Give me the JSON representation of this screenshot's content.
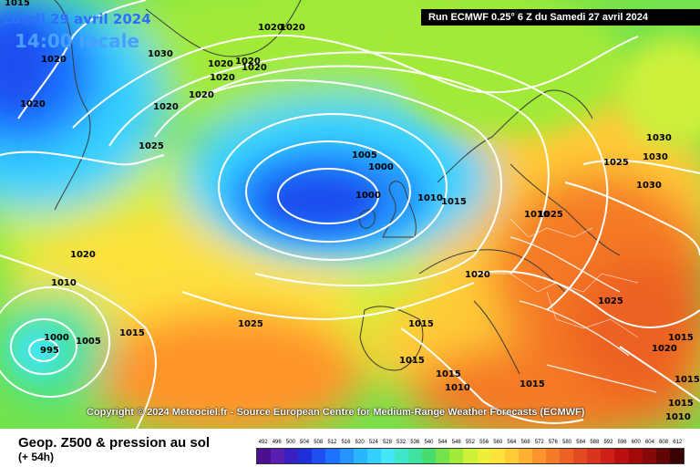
{
  "header": {
    "date": "Lundi 29 avril 2024",
    "local_time": "14:00 locale",
    "run": "Run ECMWF 0.25° 6 Z du Samedi 27 avril 2024"
  },
  "copyright": "Copyright © 2024 Meteociel.fr - Source European Centre for Medium-Range Weather Forecasts (ECMWF)",
  "footer": {
    "product": "Geop. Z500 & pression au sol",
    "lead": "(+ 54h)"
  },
  "legend": {
    "values": [
      "492",
      "496",
      "500",
      "504",
      "508",
      "512",
      "516",
      "520",
      "524",
      "528",
      "532",
      "536",
      "540",
      "544",
      "548",
      "552",
      "556",
      "560",
      "564",
      "568",
      "572",
      "576",
      "580",
      "584",
      "588",
      "592",
      "596",
      "600",
      "604",
      "608",
      "612"
    ],
    "colors": [
      "#4b0f8f",
      "#5a1fb0",
      "#3a20c0",
      "#2030d8",
      "#1e50f0",
      "#1f72ff",
      "#2494ff",
      "#2ab6ff",
      "#35d0ff",
      "#45e6f6",
      "#3fe6c9",
      "#3fe2a0",
      "#46dd6e",
      "#74e24b",
      "#a2ea38",
      "#cdf03a",
      "#eeef3a",
      "#fde13c",
      "#ffcb38",
      "#ffb032",
      "#ff942c",
      "#f57a28",
      "#ec6224",
      "#e24b20",
      "#d8351c",
      "#cc2018",
      "#bc1010",
      "#a20a0a",
      "#860808",
      "#640505",
      "#3a0303"
    ]
  },
  "map": {
    "high_color": "#fdd23a",
    "isobar_labels": [
      {
        "text": "1015"
      },
      {
        "text": "1020"
      },
      {
        "text": "1020"
      },
      {
        "text": "1030"
      },
      {
        "text": "1020"
      },
      {
        "text": "1020"
      },
      {
        "text": "1020"
      },
      {
        "text": "1020"
      },
      {
        "text": "1020"
      },
      {
        "text": "1020"
      },
      {
        "text": "1020"
      },
      {
        "text": "1020"
      },
      {
        "text": "1025"
      },
      {
        "text": "1005"
      },
      {
        "text": "1000"
      },
      {
        "text": "1000"
      },
      {
        "text": "1010"
      },
      {
        "text": "1015"
      },
      {
        "text": "1010"
      },
      {
        "text": "1025"
      },
      {
        "text": "1025"
      },
      {
        "text": "1030"
      },
      {
        "text": "1030"
      },
      {
        "text": "1030"
      },
      {
        "text": "1020"
      },
      {
        "text": "1010"
      },
      {
        "text": "1020"
      },
      {
        "text": "1000"
      },
      {
        "text": "995"
      },
      {
        "text": "1005"
      },
      {
        "text": "1015"
      },
      {
        "text": "1025"
      },
      {
        "text": "1025"
      },
      {
        "text": "1015"
      },
      {
        "text": "1015"
      },
      {
        "text": "1015"
      },
      {
        "text": "1010"
      },
      {
        "text": "1015"
      },
      {
        "text": "1015"
      },
      {
        "text": "1020"
      },
      {
        "text": "1015"
      },
      {
        "text": "1015"
      },
      {
        "text": "1010"
      }
    ]
  }
}
